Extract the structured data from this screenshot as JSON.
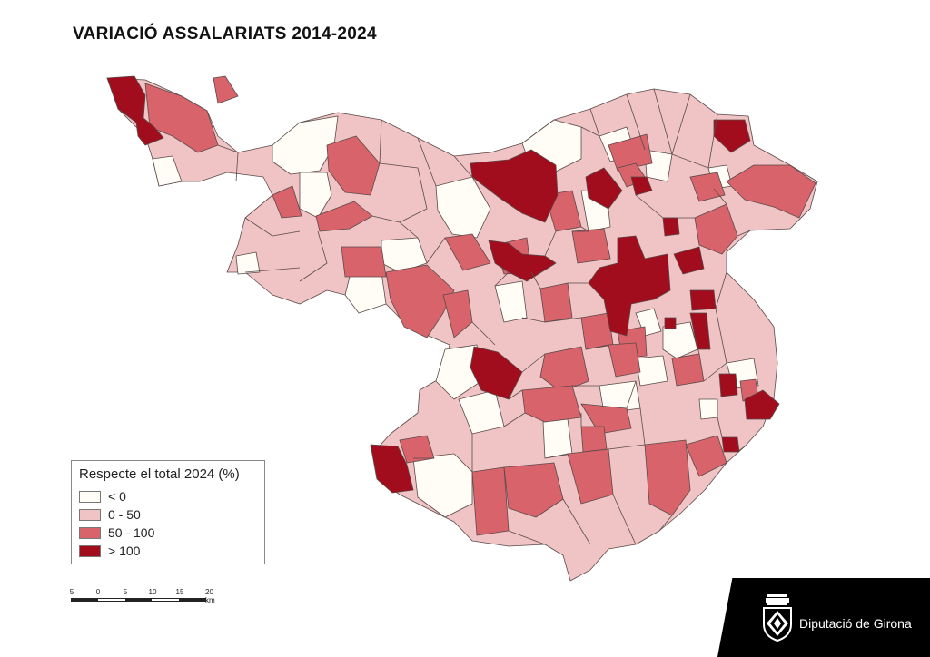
{
  "title": "VARIACIÓ ASSALARIATS 2014-2024",
  "colors": {
    "lt0": "#fffdf6",
    "c0_50": "#f0c3c4",
    "c50_100": "#d9636a",
    "gt100": "#a10d1d",
    "border": "#5a4a4a"
  },
  "legend": {
    "title": "Respecte el total 2024 (%)",
    "items": [
      {
        "label": "< 0",
        "color": "#fffdf6"
      },
      {
        "label": "0 - 50",
        "color": "#f0c3c4"
      },
      {
        "label": "50 - 100",
        "color": "#d9636a"
      },
      {
        "label": "> 100",
        "color": "#a10d1d"
      }
    ]
  },
  "scalebar": {
    "ticks": [
      "5",
      "0",
      "5",
      "10",
      "15",
      "20 km"
    ]
  },
  "brand": {
    "name": "Diputació de Girona",
    "logo_icon": "coat-of-arms-icon"
  }
}
